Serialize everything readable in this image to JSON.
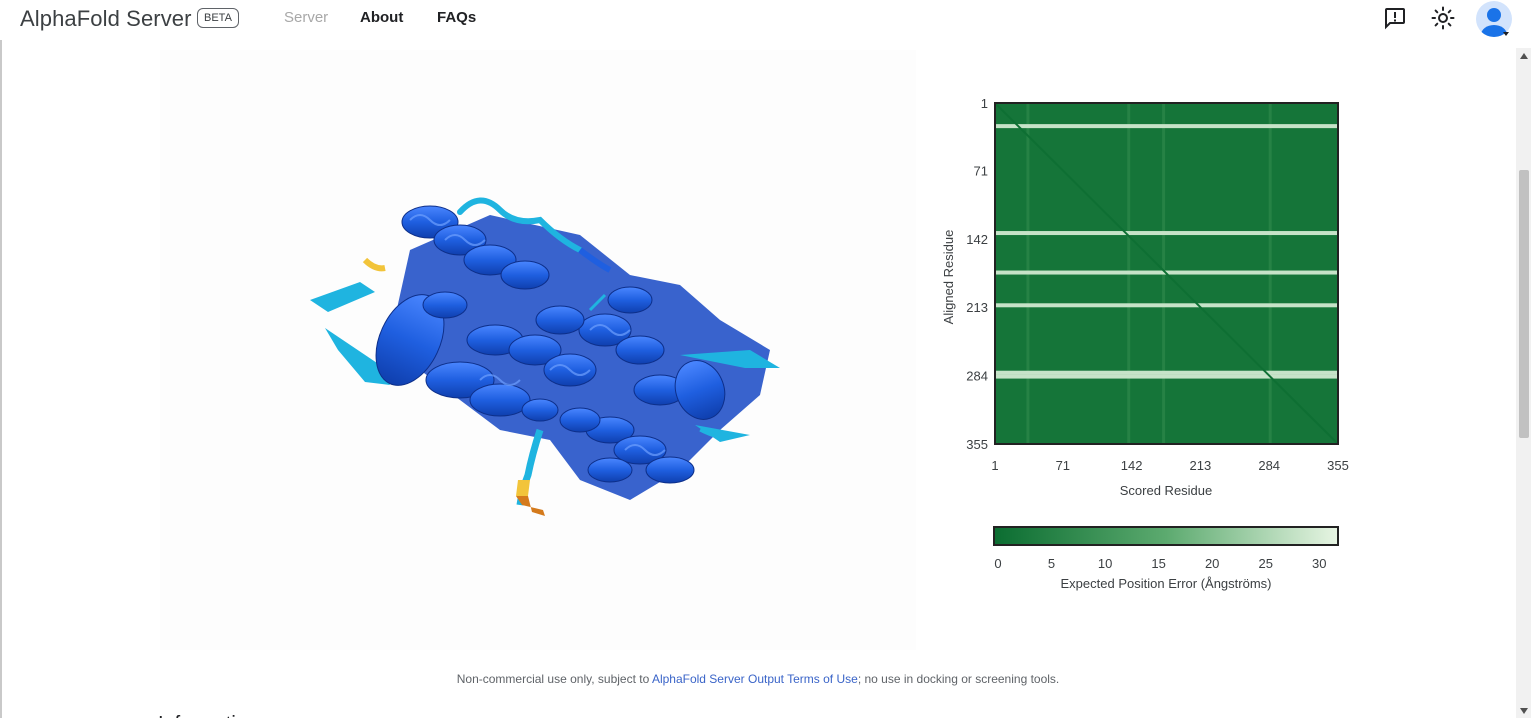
{
  "header": {
    "brand": "AlphaFold Server",
    "badge": "BETA",
    "nav": {
      "server": "Server",
      "about": "About",
      "faqs": "FAQs"
    },
    "icons": [
      "feedback-icon",
      "brightness-icon",
      "account-avatar-icon"
    ]
  },
  "structure_viewer": {
    "icon": "protein-ribbon-model",
    "colors": {
      "very_high": "#1f5fe0",
      "high": "#1fb4e0",
      "low": "#f2c43a",
      "very_low": "#d47a1c"
    }
  },
  "chart_data": {
    "type": "heatmap",
    "title": "",
    "xlabel": "Scored Residue",
    "ylabel": "Aligned Residue",
    "x_ticks": [
      "1",
      "71",
      "142",
      "213",
      "284",
      "355"
    ],
    "y_ticks": [
      "1",
      "71",
      "142",
      "213",
      "284",
      "355"
    ],
    "xlim": [
      1,
      355
    ],
    "ylim": [
      1,
      355
    ],
    "colorbar": {
      "label": "Expected Position Error (Ångströms)",
      "ticks": [
        "0",
        "5",
        "10",
        "15",
        "20",
        "25",
        "30"
      ],
      "range": [
        0,
        31.75
      ],
      "colors": [
        "#0b6d31",
        "#5caa6f",
        "#e7f5e3"
      ]
    },
    "matrix_summary": {
      "baseline_error": 2,
      "high_error_rows": [
        25,
        136,
        177,
        211,
        281,
        285
      ],
      "high_error_columns": [
        35,
        139,
        175,
        285
      ],
      "diagonal_error": 0.5
    }
  },
  "footer": {
    "disclaimer_prefix": "Non-commercial use only, subject to ",
    "disclaimer_link": "AlphaFold Server Output Terms of Use",
    "disclaimer_suffix": "; no use in docking or screening tools.",
    "next_heading": "Information"
  }
}
